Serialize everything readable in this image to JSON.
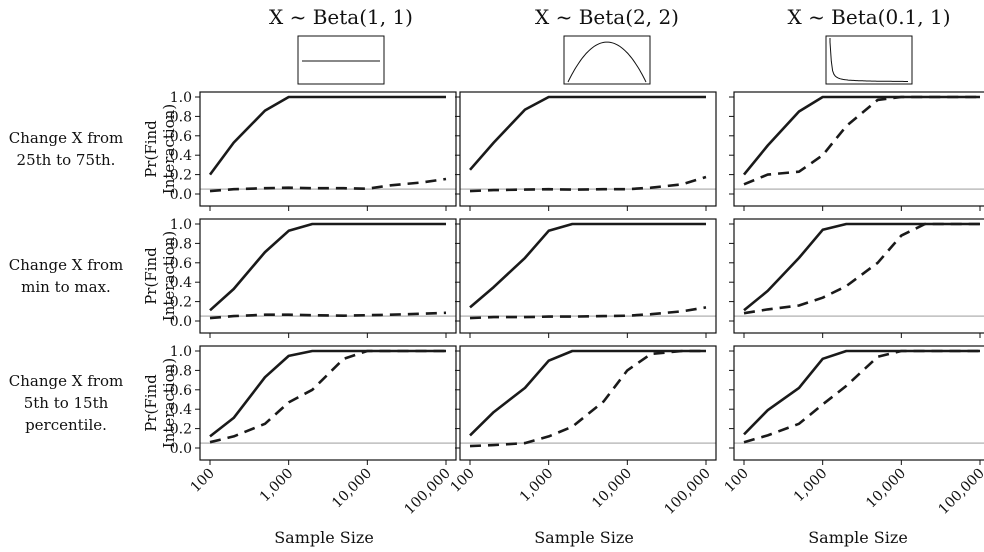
{
  "chart_data": {
    "type": "line",
    "x": [
      100,
      200,
      500,
      1000,
      2000,
      5000,
      10000,
      20000,
      50000,
      100000
    ],
    "xlabel": "Sample Size",
    "ylabel_line1": "Pr(Find",
    "ylabel_line2": "Interaction)",
    "x_ticks": [
      {
        "value": 100,
        "label": "100"
      },
      {
        "value": 1000,
        "label": "1,000"
      },
      {
        "value": 10000,
        "label": "10,000"
      },
      {
        "value": 100000,
        "label": "100,000"
      }
    ],
    "y_ticks": [
      "0.0",
      "0.2",
      "0.4",
      "0.6",
      "0.8",
      "1.0"
    ],
    "ylim": [
      0,
      1
    ],
    "x_scale": "log",
    "reference_line": 0.05,
    "columns": [
      {
        "title": "X ~ Beta(1, 1)",
        "density": "uniform"
      },
      {
        "title": "X ~ Beta(2, 2)",
        "density": "hump"
      },
      {
        "title": "X ~ Beta(0.1, 1)",
        "density": "spike"
      }
    ],
    "rows": [
      {
        "label": [
          "Change X from",
          "25th to 75th."
        ]
      },
      {
        "label": [
          "Change X from",
          "min to max."
        ]
      },
      {
        "label": [
          "Change X from",
          "5th to 15th",
          "percentile."
        ]
      }
    ],
    "panels": [
      {
        "row": 0,
        "col": 0,
        "series": [
          {
            "style": "solid",
            "values": [
              0.2,
              0.53,
              0.86,
              1.0,
              1.0,
              1.0,
              1.0,
              1.0,
              1.0,
              1.0
            ]
          },
          {
            "style": "dashed",
            "values": [
              0.03,
              0.05,
              0.06,
              0.065,
              0.06,
              0.06,
              0.055,
              0.09,
              0.12,
              0.155
            ]
          }
        ]
      },
      {
        "row": 0,
        "col": 1,
        "series": [
          {
            "style": "solid",
            "values": [
              0.25,
              0.53,
              0.87,
              1.0,
              1.0,
              1.0,
              1.0,
              1.0,
              1.0,
              1.0
            ]
          },
          {
            "style": "dashed",
            "values": [
              0.03,
              0.04,
              0.045,
              0.05,
              0.045,
              0.05,
              0.05,
              0.065,
              0.1,
              0.175
            ]
          }
        ]
      },
      {
        "row": 0,
        "col": 2,
        "series": [
          {
            "style": "solid",
            "values": [
              0.2,
              0.5,
              0.85,
              1.0,
              1.0,
              1.0,
              1.0,
              1.0,
              1.0,
              1.0
            ]
          },
          {
            "style": "dashed",
            "values": [
              0.1,
              0.2,
              0.23,
              0.4,
              0.7,
              0.97,
              1.0,
              1.0,
              1.0,
              1.0
            ]
          }
        ]
      },
      {
        "row": 1,
        "col": 0,
        "series": [
          {
            "style": "solid",
            "values": [
              0.11,
              0.33,
              0.71,
              0.93,
              1.0,
              1.0,
              1.0,
              1.0,
              1.0,
              1.0
            ]
          },
          {
            "style": "dashed",
            "values": [
              0.03,
              0.05,
              0.065,
              0.065,
              0.06,
              0.055,
              0.06,
              0.065,
              0.075,
              0.085
            ]
          }
        ]
      },
      {
        "row": 1,
        "col": 1,
        "series": [
          {
            "style": "solid",
            "values": [
              0.14,
              0.35,
              0.65,
              0.93,
              1.0,
              1.0,
              1.0,
              1.0,
              1.0,
              1.0
            ]
          },
          {
            "style": "dashed",
            "values": [
              0.03,
              0.04,
              0.04,
              0.045,
              0.045,
              0.05,
              0.055,
              0.07,
              0.1,
              0.14
            ]
          }
        ]
      },
      {
        "row": 1,
        "col": 2,
        "series": [
          {
            "style": "solid",
            "values": [
              0.11,
              0.31,
              0.65,
              0.94,
              1.0,
              1.0,
              1.0,
              1.0,
              1.0,
              1.0
            ]
          },
          {
            "style": "dashed",
            "values": [
              0.08,
              0.12,
              0.16,
              0.24,
              0.36,
              0.6,
              0.88,
              1.0,
              1.0,
              1.0
            ]
          }
        ]
      },
      {
        "row": 2,
        "col": 0,
        "series": [
          {
            "style": "solid",
            "values": [
              0.12,
              0.31,
              0.73,
              0.95,
              1.0,
              1.0,
              1.0,
              1.0,
              1.0,
              1.0
            ]
          },
          {
            "style": "dashed",
            "values": [
              0.06,
              0.12,
              0.25,
              0.47,
              0.6,
              0.92,
              1.0,
              1.0,
              1.0,
              1.0
            ]
          }
        ]
      },
      {
        "row": 2,
        "col": 1,
        "series": [
          {
            "style": "solid",
            "values": [
              0.13,
              0.37,
              0.62,
              0.9,
              1.0,
              1.0,
              1.0,
              1.0,
              1.0,
              1.0
            ]
          },
          {
            "style": "dashed",
            "values": [
              0.02,
              0.03,
              0.05,
              0.12,
              0.22,
              0.48,
              0.8,
              0.97,
              1.0,
              1.0
            ]
          }
        ]
      },
      {
        "row": 2,
        "col": 2,
        "series": [
          {
            "style": "solid",
            "values": [
              0.14,
              0.39,
              0.62,
              0.92,
              1.0,
              1.0,
              1.0,
              1.0,
              1.0,
              1.0
            ]
          },
          {
            "style": "dashed",
            "values": [
              0.06,
              0.13,
              0.25,
              0.45,
              0.64,
              0.94,
              1.0,
              1.0,
              1.0,
              1.0
            ]
          }
        ]
      }
    ]
  }
}
